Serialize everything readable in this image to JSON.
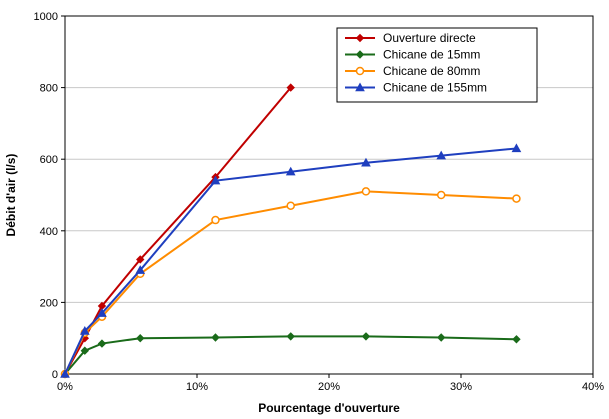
{
  "chart_data": {
    "type": "line",
    "xlabel": "Pourcentage d'ouverture",
    "ylabel": "Débit d'air (l/s)",
    "xlim": [
      0,
      0.4
    ],
    "ylim": [
      0,
      1000
    ],
    "x_ticks": [
      "0%",
      "10%",
      "20%",
      "30%",
      "40%"
    ],
    "y_ticks": [
      "0",
      "200",
      "400",
      "600",
      "800",
      "1000"
    ],
    "grid": "horizontal",
    "legend_position": "top-right",
    "series": [
      {
        "name": "Ouverture directe",
        "color": "#c00000",
        "marker": "diamond",
        "x": [
          0,
          0.015,
          0.028,
          0.057,
          0.114,
          0.171
        ],
        "y": [
          0,
          100,
          190,
          320,
          550,
          800
        ]
      },
      {
        "name": "Chicane de 15mm",
        "color": "#1a6b1a",
        "marker": "diamond",
        "x": [
          0,
          0.015,
          0.028,
          0.057,
          0.114,
          0.171,
          0.228,
          0.285,
          0.342
        ],
        "y": [
          0,
          65,
          85,
          100,
          102,
          105,
          105,
          102,
          97
        ]
      },
      {
        "name": "Chicane de 80mm",
        "color": "#ff8c00",
        "marker": "circle",
        "x": [
          0,
          0.015,
          0.028,
          0.057,
          0.114,
          0.171,
          0.228,
          0.285,
          0.342
        ],
        "y": [
          0,
          115,
          160,
          280,
          430,
          470,
          510,
          500,
          490
        ]
      },
      {
        "name": "Chicane de 155mm",
        "color": "#1f3fbf",
        "marker": "triangle",
        "x": [
          0,
          0.015,
          0.028,
          0.057,
          0.114,
          0.171,
          0.228,
          0.285,
          0.342
        ],
        "y": [
          0,
          120,
          170,
          290,
          540,
          565,
          590,
          610,
          630
        ]
      }
    ]
  }
}
